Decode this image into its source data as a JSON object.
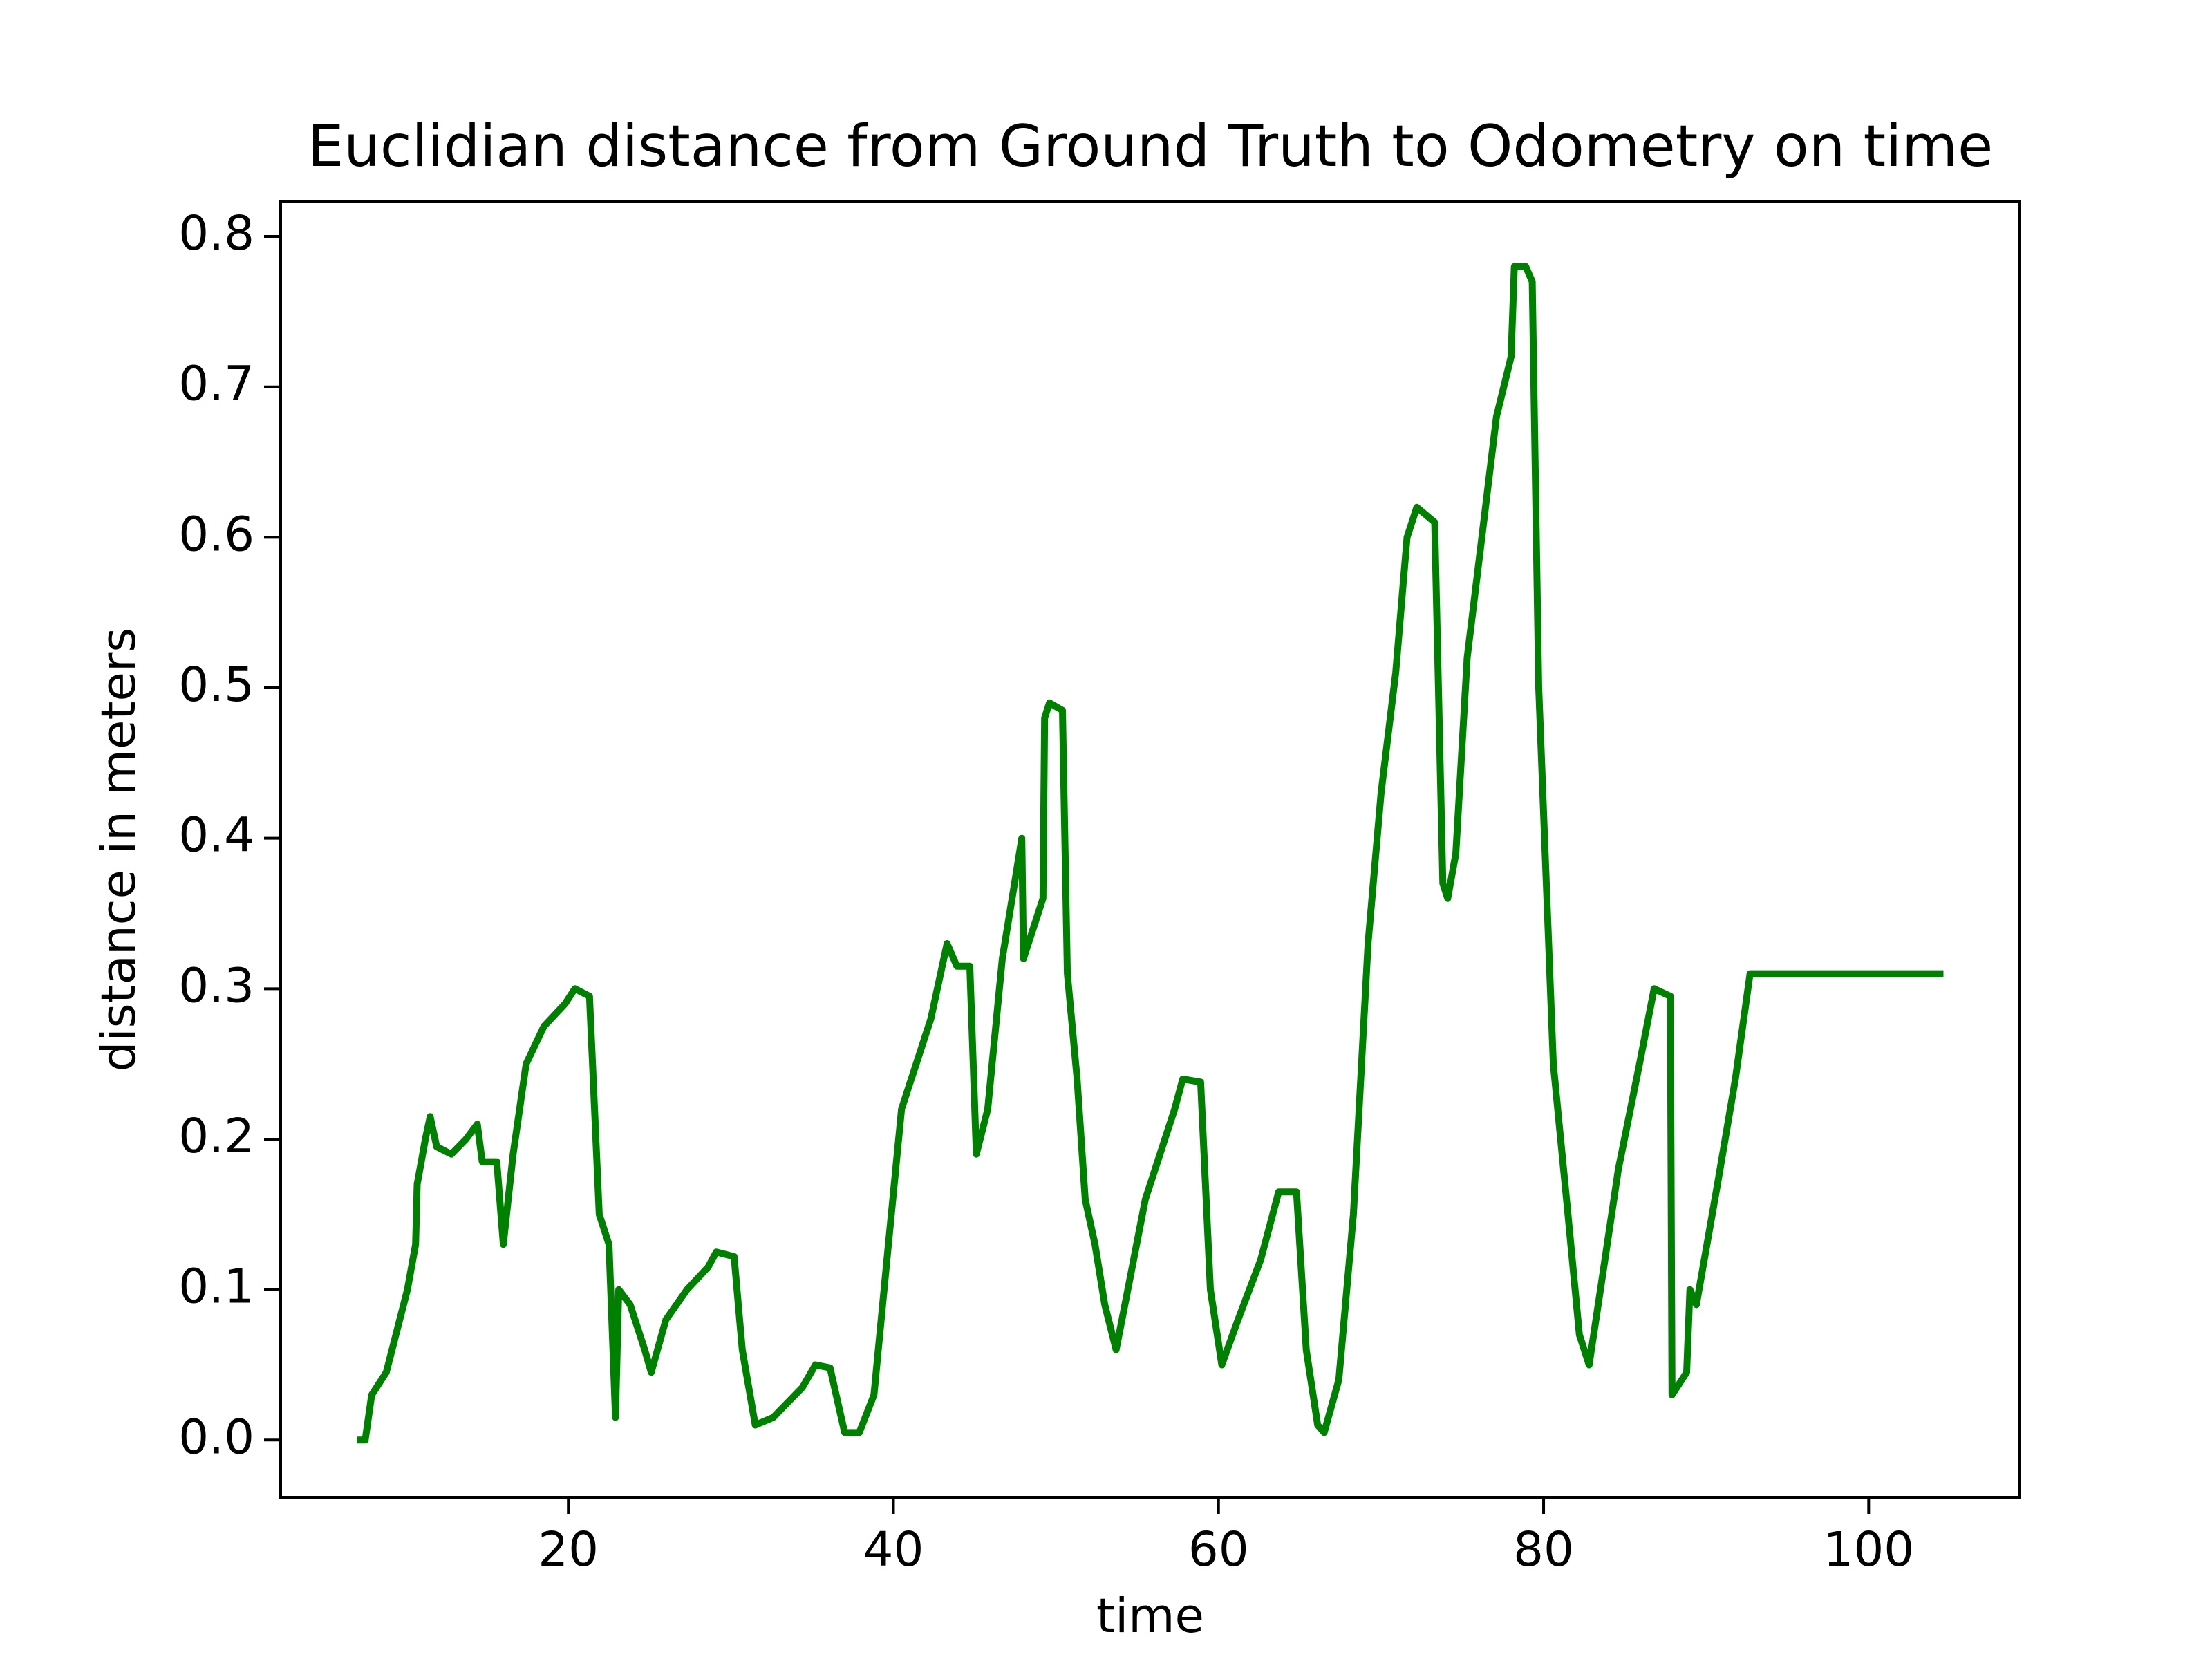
{
  "chart_data": {
    "type": "line",
    "title": "Euclidian distance from Ground Truth to Odometry on time",
    "x_label": "time",
    "y_label": "distance in meters",
    "color": "#008000",
    "x": [
      7.0,
      7.5,
      7.9,
      8.8,
      10.1,
      10.6,
      10.7,
      11.2,
      11.5,
      11.9,
      12.8,
      13.7,
      14.4,
      14.7,
      15.6,
      16.0,
      16.6,
      17.4,
      18.5,
      19.8,
      20.4,
      21.3,
      21.9,
      22.5,
      22.9,
      23.1,
      23.8,
      24.7,
      25.1,
      26.0,
      27.3,
      28.6,
      29.1,
      30.2,
      30.7,
      31.5,
      32.6,
      34.4,
      35.2,
      36.1,
      37.0,
      37.9,
      38.8,
      39.6,
      40.5,
      41.4,
      42.3,
      43.3,
      43.9,
      44.7,
      45.1,
      45.8,
      46.7,
      47.6,
      47.9,
      48.0,
      49.2,
      49.3,
      49.6,
      50.4,
      50.7,
      51.3,
      51.8,
      52.4,
      53.0,
      53.7,
      54.6,
      55.5,
      56.4,
      57.3,
      57.8,
      58.9,
      59.5,
      60.2,
      61.2,
      62.6,
      63.7,
      64.8,
      65.4,
      66.1,
      66.5,
      67.4,
      68.3,
      69.2,
      70.0,
      70.9,
      71.6,
      72.2,
      73.3,
      73.8,
      74.1,
      74.6,
      75.3,
      76.2,
      77.1,
      78.0,
      78.2,
      78.9,
      79.3,
      79.7,
      80.6,
      81.5,
      82.2,
      82.8,
      83.5,
      84.6,
      85.9,
      86.8,
      87.8,
      87.9,
      88.8,
      89.0,
      89.4,
      90.7,
      91.8,
      92.7,
      104.6
    ],
    "values": [
      0.0,
      0.0,
      0.03,
      0.045,
      0.1,
      0.13,
      0.17,
      0.2,
      0.215,
      0.195,
      0.19,
      0.2,
      0.21,
      0.185,
      0.185,
      0.13,
      0.19,
      0.25,
      0.275,
      0.29,
      0.3,
      0.295,
      0.15,
      0.13,
      0.015,
      0.1,
      0.09,
      0.06,
      0.045,
      0.08,
      0.1,
      0.115,
      0.125,
      0.122,
      0.06,
      0.01,
      0.015,
      0.035,
      0.05,
      0.048,
      0.005,
      0.005,
      0.03,
      0.12,
      0.22,
      0.25,
      0.28,
      0.33,
      0.315,
      0.315,
      0.19,
      0.22,
      0.32,
      0.38,
      0.4,
      0.32,
      0.36,
      0.48,
      0.49,
      0.485,
      0.31,
      0.24,
      0.16,
      0.13,
      0.09,
      0.06,
      0.11,
      0.16,
      0.19,
      0.22,
      0.24,
      0.238,
      0.1,
      0.05,
      0.08,
      0.12,
      0.165,
      0.165,
      0.06,
      0.01,
      0.005,
      0.04,
      0.15,
      0.33,
      0.43,
      0.51,
      0.6,
      0.62,
      0.61,
      0.37,
      0.36,
      0.39,
      0.52,
      0.6,
      0.68,
      0.72,
      0.78,
      0.78,
      0.77,
      0.5,
      0.25,
      0.15,
      0.07,
      0.05,
      0.1,
      0.18,
      0.25,
      0.3,
      0.295,
      0.03,
      0.045,
      0.1,
      0.09,
      0.17,
      0.24,
      0.31,
      0.31
    ],
    "xlim": [
      2.3,
      109.3
    ],
    "ylim": [
      -0.038,
      0.823
    ],
    "xticks": [
      20,
      40,
      60,
      80,
      100
    ],
    "yticks": [
      {
        "value": 0,
        "label": "0.0"
      },
      0.1,
      0.2,
      0.3,
      0.4,
      0.5,
      0.6,
      0.7,
      0.8
    ],
    "grid": false
  }
}
